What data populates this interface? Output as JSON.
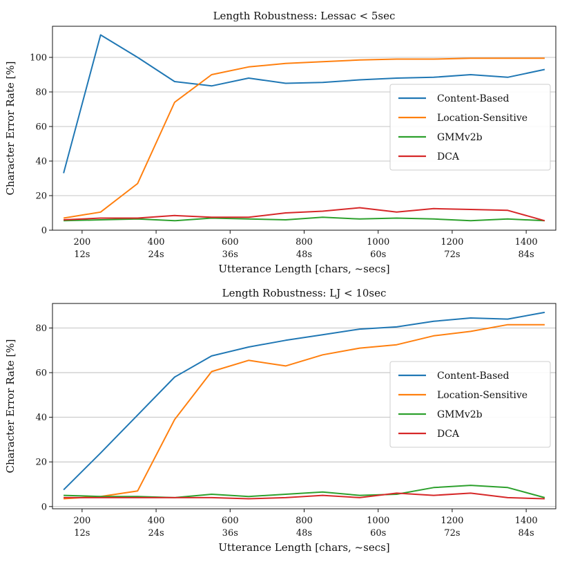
{
  "chart_data": [
    {
      "type": "line",
      "title": "Length Robustness: Lessac < 5sec",
      "xlabel": "Utterance Length [chars, ~secs]",
      "ylabel": "Character Error Rate [%]",
      "xlim": [
        120,
        1480
      ],
      "ylim": [
        0,
        118
      ],
      "grid": "horizontal",
      "legend_position": "right",
      "x_ticks": [
        200,
        400,
        600,
        800,
        1000,
        1200,
        1400
      ],
      "x_tick_labels": [
        "200",
        "400",
        "600",
        "800",
        "1000",
        "1200",
        "1400"
      ],
      "x_tick_sublabels": [
        "12s",
        "24s",
        "36s",
        "48s",
        "60s",
        "72s",
        "84s"
      ],
      "y_ticks": [
        0,
        20,
        40,
        60,
        80,
        100
      ],
      "x": [
        150,
        250,
        350,
        450,
        550,
        650,
        750,
        850,
        950,
        1050,
        1150,
        1250,
        1350,
        1450
      ],
      "series": [
        {
          "name": "Content-Based",
          "color": "#1f77b4",
          "values": [
            33,
            113,
            100,
            86,
            83.5,
            88,
            85,
            85.5,
            87,
            88,
            88.5,
            90,
            88.5,
            93
          ]
        },
        {
          "name": "Location-Sensitive",
          "color": "#ff7f0e",
          "values": [
            7,
            10.5,
            27,
            74,
            90,
            94.5,
            96.5,
            97.5,
            98.5,
            99,
            99,
            99.5,
            99.5,
            99.5
          ]
        },
        {
          "name": "GMMv2b",
          "color": "#2ca02c",
          "values": [
            5.5,
            6,
            6.5,
            5.5,
            7,
            6.5,
            6,
            7.5,
            6.5,
            7,
            6.5,
            5.5,
            6.5,
            5.5
          ]
        },
        {
          "name": "DCA",
          "color": "#d62728",
          "values": [
            6,
            7,
            7,
            8.5,
            7.5,
            7.5,
            10,
            11,
            13,
            10.5,
            12.5,
            12,
            11.5,
            5.5
          ]
        }
      ]
    },
    {
      "type": "line",
      "title": "Length Robustness: LJ < 10sec",
      "xlabel": "Utterance Length [chars, ~secs]",
      "ylabel": "Character Error Rate [%]",
      "xlim": [
        120,
        1480
      ],
      "ylim": [
        -1,
        91
      ],
      "grid": "horizontal",
      "legend_position": "right",
      "x_ticks": [
        200,
        400,
        600,
        800,
        1000,
        1200,
        1400
      ],
      "x_tick_labels": [
        "200",
        "400",
        "600",
        "800",
        "1000",
        "1200",
        "1400"
      ],
      "x_tick_sublabels": [
        "12s",
        "24s",
        "36s",
        "48s",
        "60s",
        "72s",
        "84s"
      ],
      "y_ticks": [
        0,
        20,
        40,
        60,
        80
      ],
      "x": [
        150,
        250,
        350,
        450,
        550,
        650,
        750,
        850,
        950,
        1050,
        1150,
        1250,
        1350,
        1450
      ],
      "series": [
        {
          "name": "Content-Based",
          "color": "#1f77b4",
          "values": [
            7.5,
            24,
            41,
            58,
            67.5,
            71.5,
            74.5,
            77,
            79.5,
            80.5,
            83,
            84.5,
            84,
            87
          ]
        },
        {
          "name": "Location-Sensitive",
          "color": "#ff7f0e",
          "values": [
            3.5,
            4.5,
            7,
            39,
            60.5,
            65.5,
            63,
            68,
            71,
            72.5,
            76.5,
            78.5,
            81.5,
            81.5
          ]
        },
        {
          "name": "GMMv2b",
          "color": "#2ca02c",
          "values": [
            5,
            4.5,
            4.5,
            4,
            5.5,
            4.5,
            5.5,
            6.5,
            5,
            5.5,
            8.5,
            9.5,
            8.5,
            4
          ]
        },
        {
          "name": "DCA",
          "color": "#d62728",
          "values": [
            4,
            4,
            4,
            4,
            4,
            3.5,
            4,
            5,
            4,
            6,
            5,
            6,
            4,
            3.5
          ]
        }
      ]
    }
  ]
}
